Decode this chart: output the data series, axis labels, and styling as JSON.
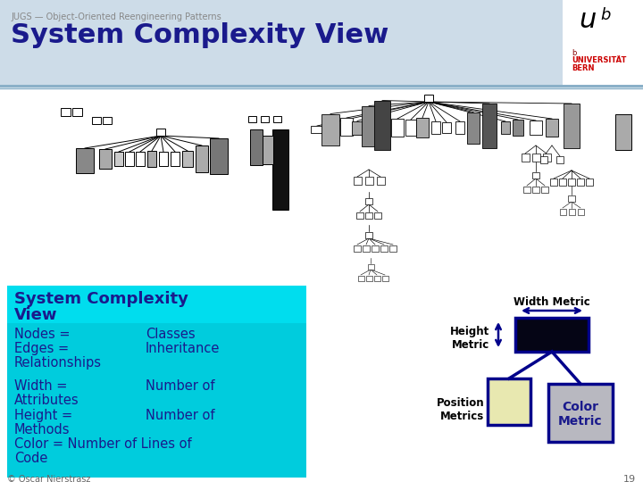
{
  "title": "System Complexity View",
  "subtitle": "JUGS — Object-Oriented Reengineering Patterns",
  "bg_color": "#ffffff",
  "header_bg": "#cddce8",
  "text_dark_blue": "#1a1a8c",
  "cyan_bg": "#00eeff",
  "footer_text": "© Oscar Nierstrasz",
  "page_number": "19",
  "width_metric_label": "Width Metric",
  "height_metric_label": "Height\nMetric",
  "position_metrics_label": "Position\nMetrics",
  "color_metric_label": "Color\nMetric",
  "univ_color": "#cc0000"
}
